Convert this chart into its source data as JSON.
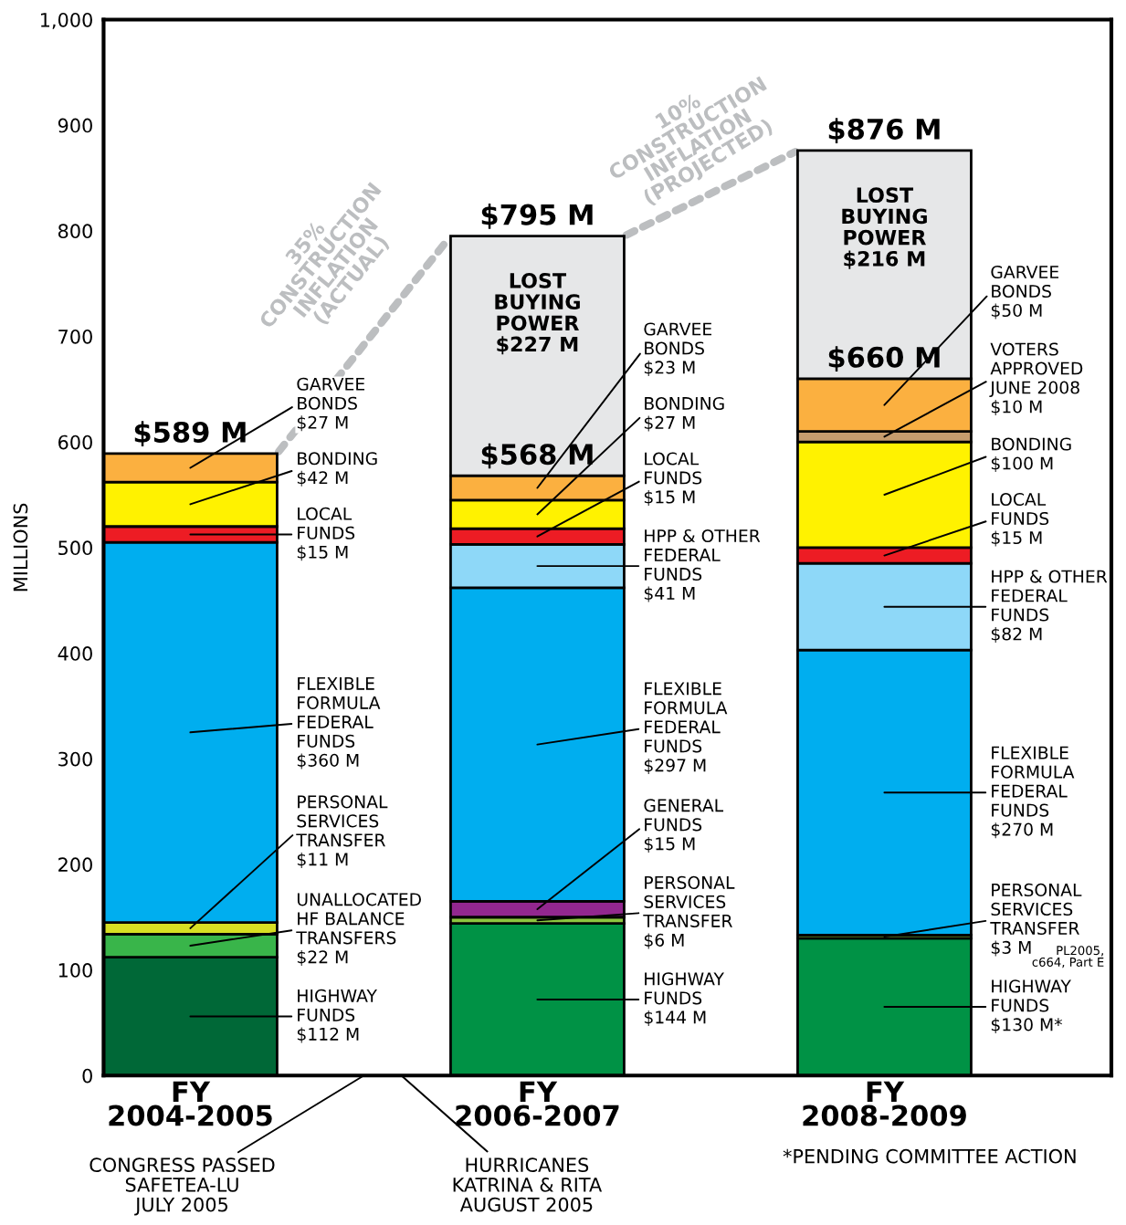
{
  "chart_data": {
    "type": "bar",
    "stacked": true,
    "ylabel": "MILLIONS",
    "categories": [
      "FY\n2004-2005",
      "FY\n2006-2007",
      "FY\n2008-2009"
    ],
    "ylim": [
      0,
      1000
    ],
    "yticks": [
      0,
      100,
      200,
      300,
      400,
      500,
      600,
      700,
      800,
      900,
      {
        "value": 1000,
        "label": "1,000"
      }
    ],
    "series": [
      {
        "colors": [
          "#006837",
          "#009245",
          "#009245"
        ],
        "values": [
          112,
          144,
          130
        ],
        "value_labels": [
          "HIGHWAY\nFUNDS\n$112 M",
          "HIGHWAY\nFUNDS\n$144 M",
          "HIGHWAY\nFUNDS\n$130 M*"
        ]
      },
      {
        "color": "#39b54a",
        "values": [
          22,
          null,
          null
        ],
        "value_labels": [
          "UNALLOCATED\nHF BALANCE\nTRANSFERS\n$22 M",
          null,
          null
        ]
      },
      {
        "colors": [
          "#d7df23",
          "#8dc63f",
          "#8dc63f"
        ],
        "values": [
          11,
          6,
          3
        ],
        "value_labels": [
          "PERSONAL\nSERVICES\nTRANSFER\n$11 M",
          "PERSONAL\nSERVICES\nTRANSFER\n$6 M",
          "PERSONAL\nSERVICES\nTRANSFER\n$3 M"
        ]
      },
      {
        "color": "#92278f",
        "values": [
          null,
          15,
          null
        ],
        "value_labels": [
          null,
          "GENERAL\nFUNDS\n$15 M",
          null
        ]
      },
      {
        "color": "#00aeef",
        "values": [
          360,
          297,
          270
        ],
        "value_labels": [
          "FLEXIBLE\nFORMULA\nFEDERAL\nFUNDS\n$360 M",
          "FLEXIBLE\nFORMULA\nFEDERAL\nFUNDS\n$297 M",
          "FLEXIBLE\nFORMULA\nFEDERAL\nFUNDS\n$270 M"
        ]
      },
      {
        "color": "#8ed8f8",
        "values": [
          null,
          41,
          82
        ],
        "value_labels": [
          null,
          "HPP & OTHER\nFEDERAL\nFUNDS\n$41 M",
          "HPP & OTHER\nFEDERAL\nFUNDS\n$82 M"
        ]
      },
      {
        "color": "#ed1c24",
        "values": [
          15,
          15,
          15
        ],
        "value_labels": [
          "LOCAL\nFUNDS\n$15 M",
          "LOCAL\nFUNDS\n$15 M",
          "LOCAL\nFUNDS\n$15 M"
        ]
      },
      {
        "color": "#fff200",
        "values": [
          42,
          27,
          100
        ],
        "value_labels": [
          "BONDING\n$42 M",
          "BONDING\n$27 M",
          "BONDING\n$100 M"
        ]
      },
      {
        "color": "#c69c6d",
        "values": [
          null,
          null,
          10
        ],
        "value_labels": [
          null,
          null,
          "VOTERS\nAPPROVED\nJUNE 2008\n$10 M"
        ]
      },
      {
        "color": "#fbb040",
        "values": [
          27,
          23,
          50
        ],
        "value_labels": [
          "GARVEE\nBONDS\n$27 M",
          "GARVEE\nBONDS\n$23 M",
          "GARVEE\nBONDS\n$50 M"
        ]
      },
      {
        "color": "#e6e7e8",
        "values": [
          null,
          227,
          216
        ],
        "value_labels": [
          null,
          "LOST\nBUYING\nPOWER\n$227 M",
          "LOST\nBUYING\nPOWER\n$216 M"
        ]
      }
    ],
    "totals": [
      "$589 M",
      "$795 M",
      "$876 M"
    ],
    "annotations": [
      "35%\nCONSTRUCTION\nINFLATION\n(ACTUAL)",
      "10%\nCONSTRUCTION\nINFLATION\n(PROJECTED)",
      "CONGRESS PASSED\nSAFETEA-LU\nJULY 2005",
      "HURRICANES\nKATRINA & RITA\nAUGUST 2005",
      "*PENDING COMMITTEE ACTION",
      "PL2005,\nc664, Part E",
      {
        "text": "$568 M",
        "x": "FY\n2006-2007",
        "y": 568
      },
      {
        "text": "$660 M",
        "x": "FY\n2008-2009",
        "y": 660
      }
    ]
  }
}
